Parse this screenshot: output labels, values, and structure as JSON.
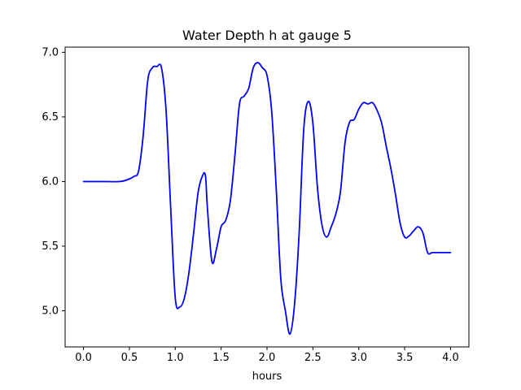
{
  "chart_data": {
    "type": "line",
    "title": "Water Depth h at gauge 5",
    "xlabel": "hours",
    "ylabel": "",
    "xlim": [
      -0.2,
      4.2
    ],
    "ylim": [
      4.72,
      7.04
    ],
    "grid": false,
    "x_ticks": [
      0.0,
      0.5,
      1.0,
      1.5,
      2.0,
      2.5,
      3.0,
      3.5,
      4.0
    ],
    "x_tick_labels": [
      "0.0",
      "0.5",
      "1.0",
      "1.5",
      "2.0",
      "2.5",
      "3.0",
      "3.5",
      "4.0"
    ],
    "y_ticks": [
      5.0,
      5.5,
      6.0,
      6.5,
      7.0
    ],
    "y_tick_labels": [
      "5.0",
      "5.5",
      "6.0",
      "6.5",
      "7.0"
    ],
    "series": [
      {
        "color": "#0000ff",
        "x": [
          0.0,
          0.2,
          0.4,
          0.5,
          0.55,
          0.6,
          0.65,
          0.7,
          0.75,
          0.8,
          0.85,
          0.9,
          0.95,
          1.0,
          1.05,
          1.1,
          1.15,
          1.2,
          1.25,
          1.3,
          1.33,
          1.35,
          1.4,
          1.45,
          1.5,
          1.55,
          1.6,
          1.65,
          1.7,
          1.75,
          1.8,
          1.85,
          1.9,
          1.95,
          2.0,
          2.05,
          2.1,
          2.15,
          2.2,
          2.25,
          2.3,
          2.35,
          2.4,
          2.45,
          2.5,
          2.55,
          2.6,
          2.65,
          2.7,
          2.75,
          2.8,
          2.85,
          2.9,
          2.95,
          3.0,
          3.05,
          3.1,
          3.15,
          3.2,
          3.25,
          3.3,
          3.35,
          3.4,
          3.45,
          3.5,
          3.55,
          3.6,
          3.65,
          3.7,
          3.75,
          3.8,
          3.85,
          3.9,
          3.95,
          4.0
        ],
        "y": [
          6.0,
          6.0,
          6.0,
          6.02,
          6.04,
          6.08,
          6.35,
          6.78,
          6.88,
          6.89,
          6.88,
          6.55,
          5.8,
          5.1,
          5.03,
          5.1,
          5.3,
          5.6,
          5.92,
          6.05,
          6.04,
          5.8,
          5.38,
          5.48,
          5.65,
          5.7,
          5.85,
          6.2,
          6.6,
          6.66,
          6.72,
          6.88,
          6.92,
          6.88,
          6.82,
          6.55,
          5.95,
          5.25,
          5.0,
          4.82,
          5.05,
          5.6,
          6.4,
          6.62,
          6.45,
          5.95,
          5.66,
          5.57,
          5.65,
          5.75,
          5.92,
          6.3,
          6.46,
          6.48,
          6.56,
          6.61,
          6.6,
          6.61,
          6.55,
          6.45,
          6.27,
          6.1,
          5.9,
          5.68,
          5.57,
          5.58,
          5.62,
          5.65,
          5.6,
          5.45,
          5.45,
          5.45,
          5.45,
          5.45,
          5.45
        ]
      }
    ]
  }
}
